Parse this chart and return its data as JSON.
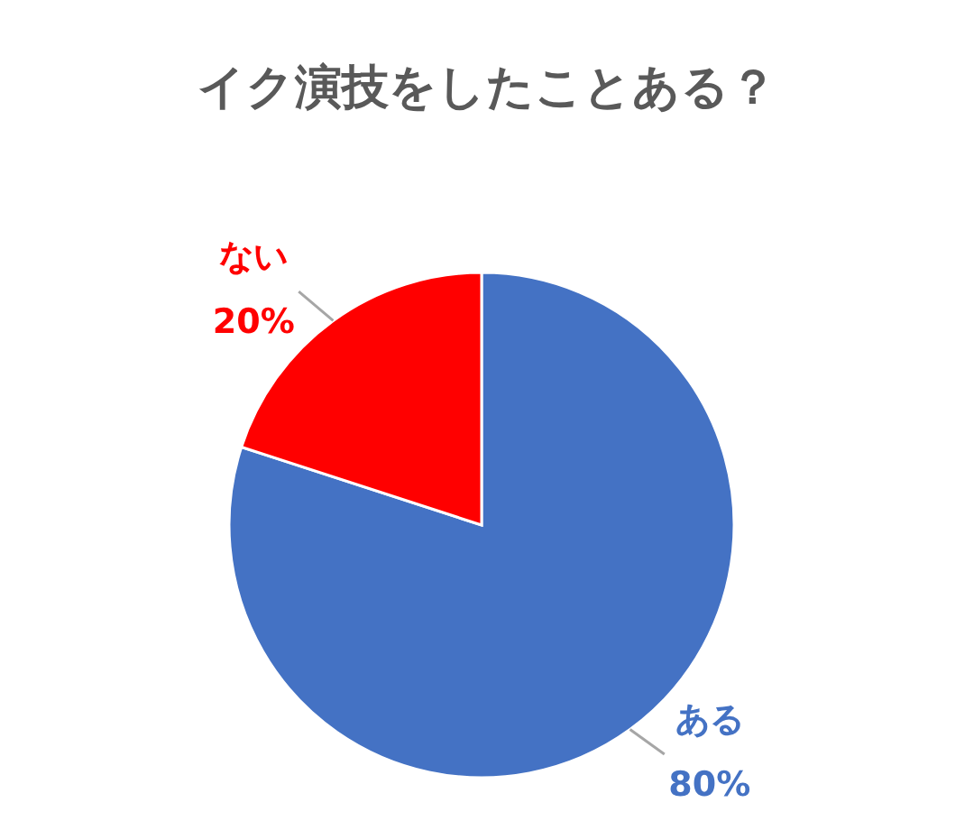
{
  "chart_data": {
    "type": "pie",
    "title": "イク演技をしたことある？",
    "categories": [
      "ある",
      "ない"
    ],
    "values": [
      80,
      20
    ],
    "value_labels": [
      "80%",
      "20%"
    ],
    "colors": [
      "#4472c4",
      "#ff0000"
    ],
    "legend": false
  }
}
